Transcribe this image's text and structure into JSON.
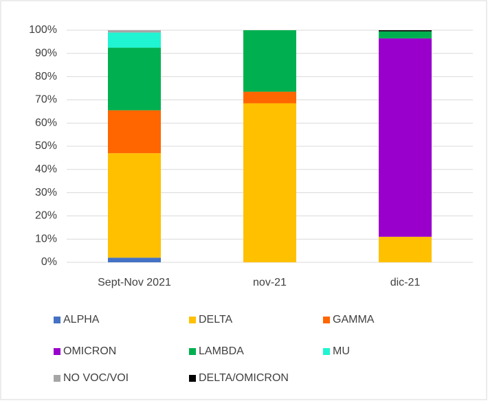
{
  "chart_data": {
    "type": "stacked_bar_100",
    "categories": [
      "Sept-Nov 2021",
      "nov-21",
      "dic-21"
    ],
    "series": [
      {
        "name": "ALPHA",
        "color": "#4472c4",
        "values": [
          2,
          0,
          0
        ]
      },
      {
        "name": "DELTA",
        "color": "#ffc000",
        "values": [
          45,
          68.5,
          11
        ]
      },
      {
        "name": "GAMMA",
        "color": "#ff6600",
        "values": [
          18.5,
          5,
          0
        ]
      },
      {
        "name": "OMICRON",
        "color": "#9900cc",
        "values": [
          0,
          0,
          85.5
        ]
      },
      {
        "name": "LAMBDA",
        "color": "#00b050",
        "values": [
          27,
          26.5,
          3
        ]
      },
      {
        "name": "MU",
        "color": "#1ff5d2",
        "values": [
          6.5,
          0,
          0
        ]
      },
      {
        "name": "NO VOC/VOI",
        "color": "#a6a6a6",
        "values": [
          1,
          0,
          0
        ]
      },
      {
        "name": "DELTA/OMICRON",
        "color": "#000000",
        "values": [
          0,
          0,
          0.5
        ]
      }
    ],
    "ylim": [
      0,
      100
    ],
    "yticks": [
      {
        "value": 0,
        "label": "0%"
      },
      {
        "value": 10,
        "label": "10%"
      },
      {
        "value": 20,
        "label": "20%"
      },
      {
        "value": 30,
        "label": "30%"
      },
      {
        "value": 40,
        "label": "40%"
      },
      {
        "value": 50,
        "label": "50%"
      },
      {
        "value": 60,
        "label": "60%"
      },
      {
        "value": 70,
        "label": "70%"
      },
      {
        "value": 80,
        "label": "80%"
      },
      {
        "value": 90,
        "label": "90%"
      },
      {
        "value": 100,
        "label": "100%"
      }
    ],
    "grid": true
  }
}
